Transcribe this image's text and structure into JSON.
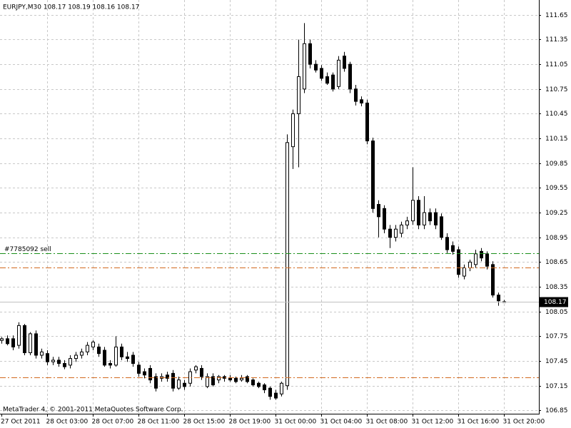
{
  "chart_data": {
    "type": "candlestick",
    "header": "EURJPY,M30  108.17 108.19 108.16 108.17",
    "footer": "MetaTrader 4, © 2001-2011 MetaQuotes Software Corp.",
    "categories": [
      "27 Oct 2011",
      null,
      null,
      null,
      null,
      null,
      null,
      null,
      "28 Oct 03:00",
      null,
      null,
      null,
      null,
      null,
      null,
      null,
      "28 Oct 07:00",
      null,
      null,
      null,
      null,
      null,
      null,
      null,
      "28 Oct 11:00",
      null,
      null,
      null,
      null,
      null,
      null,
      null,
      "28 Oct 15:00",
      null,
      null,
      null,
      null,
      null,
      null,
      null,
      "28 Oct 19:00",
      null,
      null,
      null,
      null,
      null,
      null,
      null,
      "31 Oct 00:00",
      null,
      null,
      null,
      null,
      null,
      null,
      null,
      "31 Oct 04:00",
      null,
      null,
      null,
      null,
      null,
      null,
      null,
      "31 Oct 08:00",
      null,
      null,
      null,
      null,
      null,
      null,
      null,
      "31 Oct 12:00",
      null,
      null,
      null,
      null,
      null,
      null,
      null,
      "31 Oct 16:00",
      null,
      null,
      null,
      null,
      null,
      null,
      null,
      "31 Oct 20:00"
    ],
    "open": [
      107.7,
      107.72,
      107.72,
      107.64,
      107.88,
      107.55,
      107.78,
      107.52,
      107.54,
      107.44,
      107.46,
      107.42,
      107.4,
      107.48,
      107.52,
      107.56,
      107.62,
      107.62,
      107.58,
      107.42,
      107.4,
      107.62,
      107.5,
      107.52,
      107.4,
      107.32,
      107.36,
      107.26,
      107.24,
      107.28,
      107.3,
      107.12,
      107.18,
      107.18,
      107.34,
      107.36,
      107.14,
      107.26,
      107.22,
      107.26,
      107.24,
      107.24,
      107.22,
      107.26,
      107.22,
      107.18,
      107.16,
      107.12,
      107.06,
      107.05,
      107.15,
      110.05,
      110.45,
      110.75,
      111.3,
      111.05,
      111.0,
      110.9,
      110.92,
      110.78,
      111.15,
      111.05,
      110.75,
      110.62,
      110.58,
      110.12,
      109.35,
      109.3,
      109.05,
      108.95,
      109.0,
      109.1,
      109.15,
      109.4,
      109.1,
      109.25,
      109.25,
      109.2,
      108.95,
      108.85,
      108.8,
      108.48,
      108.58,
      108.62,
      108.78,
      108.75,
      108.62,
      108.25,
      108.17
    ],
    "high": [
      107.74,
      107.76,
      107.76,
      107.92,
      107.9,
      107.8,
      107.82,
      107.6,
      107.58,
      107.5,
      107.5,
      107.46,
      107.52,
      107.56,
      107.6,
      107.68,
      107.7,
      107.66,
      107.62,
      107.46,
      107.75,
      107.66,
      107.56,
      107.56,
      107.44,
      107.36,
      107.4,
      107.3,
      107.3,
      107.32,
      107.34,
      107.26,
      107.22,
      107.36,
      107.4,
      107.4,
      107.3,
      107.3,
      107.28,
      107.28,
      107.28,
      107.26,
      107.28,
      107.28,
      107.24,
      107.2,
      107.18,
      107.14,
      107.1,
      107.2,
      110.2,
      110.5,
      111.35,
      111.55,
      111.35,
      111.1,
      111.04,
      110.95,
      110.95,
      111.15,
      111.2,
      111.08,
      110.8,
      110.66,
      110.62,
      110.16,
      109.4,
      109.34,
      109.1,
      109.1,
      109.14,
      109.2,
      109.8,
      109.45,
      109.45,
      109.3,
      109.3,
      109.24,
      109.0,
      108.9,
      108.84,
      108.62,
      108.68,
      108.8,
      108.82,
      108.78,
      108.66,
      108.28,
      108.19
    ],
    "low": [
      107.66,
      107.64,
      107.58,
      107.6,
      107.52,
      107.52,
      107.48,
      107.48,
      107.4,
      107.4,
      107.38,
      107.35,
      107.36,
      107.44,
      107.48,
      107.52,
      107.58,
      107.5,
      107.38,
      107.36,
      107.38,
      107.46,
      107.44,
      107.38,
      107.26,
      107.24,
      107.18,
      107.08,
      107.2,
      107.2,
      107.08,
      107.1,
      107.1,
      107.14,
      107.3,
      107.22,
      107.12,
      107.14,
      107.18,
      107.2,
      107.2,
      107.18,
      107.2,
      107.18,
      107.14,
      107.12,
      107.06,
      106.98,
      106.98,
      107.02,
      107.1,
      109.78,
      109.8,
      110.7,
      111.0,
      110.95,
      110.85,
      110.8,
      110.72,
      110.75,
      110.96,
      110.7,
      110.55,
      110.54,
      110.08,
      109.25,
      108.95,
      109.0,
      108.82,
      108.9,
      108.95,
      109.05,
      109.1,
      109.05,
      109.05,
      109.1,
      109.05,
      108.92,
      108.76,
      108.74,
      108.46,
      108.44,
      108.54,
      108.58,
      108.66,
      108.56,
      108.22,
      108.12,
      108.16
    ],
    "close": [
      107.72,
      107.66,
      107.62,
      107.88,
      107.55,
      107.78,
      107.52,
      107.56,
      107.44,
      107.46,
      107.42,
      107.38,
      107.48,
      107.52,
      107.56,
      107.64,
      107.68,
      107.54,
      107.4,
      107.4,
      107.62,
      107.5,
      107.48,
      107.42,
      107.3,
      107.28,
      107.22,
      107.12,
      107.26,
      107.24,
      107.12,
      107.22,
      107.14,
      107.32,
      107.38,
      107.26,
      107.26,
      107.16,
      107.26,
      107.24,
      107.22,
      107.2,
      107.24,
      107.2,
      107.16,
      107.14,
      107.1,
      107.02,
      107.0,
      107.18,
      110.1,
      110.45,
      110.9,
      111.3,
      111.05,
      110.98,
      110.88,
      110.82,
      110.75,
      111.1,
      111.0,
      110.75,
      110.6,
      110.58,
      110.12,
      109.3,
      109.2,
      109.05,
      108.95,
      109.05,
      109.1,
      109.15,
      109.4,
      109.1,
      109.25,
      109.15,
      109.1,
      108.95,
      108.8,
      108.78,
      108.5,
      108.58,
      108.65,
      108.75,
      108.7,
      108.6,
      108.25,
      108.18,
      108.17
    ],
    "up_color": "#ffffff",
    "down_color": "#000000",
    "wick_color": "#000000",
    "levels": [
      {
        "name": "#7785092 sell",
        "value": 108.76,
        "color": "#1a8f1a"
      },
      {
        "value": 108.58,
        "color": "#d2691e"
      },
      {
        "value": 107.25,
        "color": "#d2691e"
      }
    ],
    "current_price": 108.17,
    "ylim": [
      106.81,
      111.83
    ],
    "yticks": [
      111.65,
      111.35,
      111.05,
      110.75,
      110.45,
      110.15,
      109.85,
      109.55,
      109.25,
      108.95,
      108.65,
      108.35,
      108.05,
      107.75,
      107.45,
      107.15,
      106.85
    ],
    "grid": true
  }
}
